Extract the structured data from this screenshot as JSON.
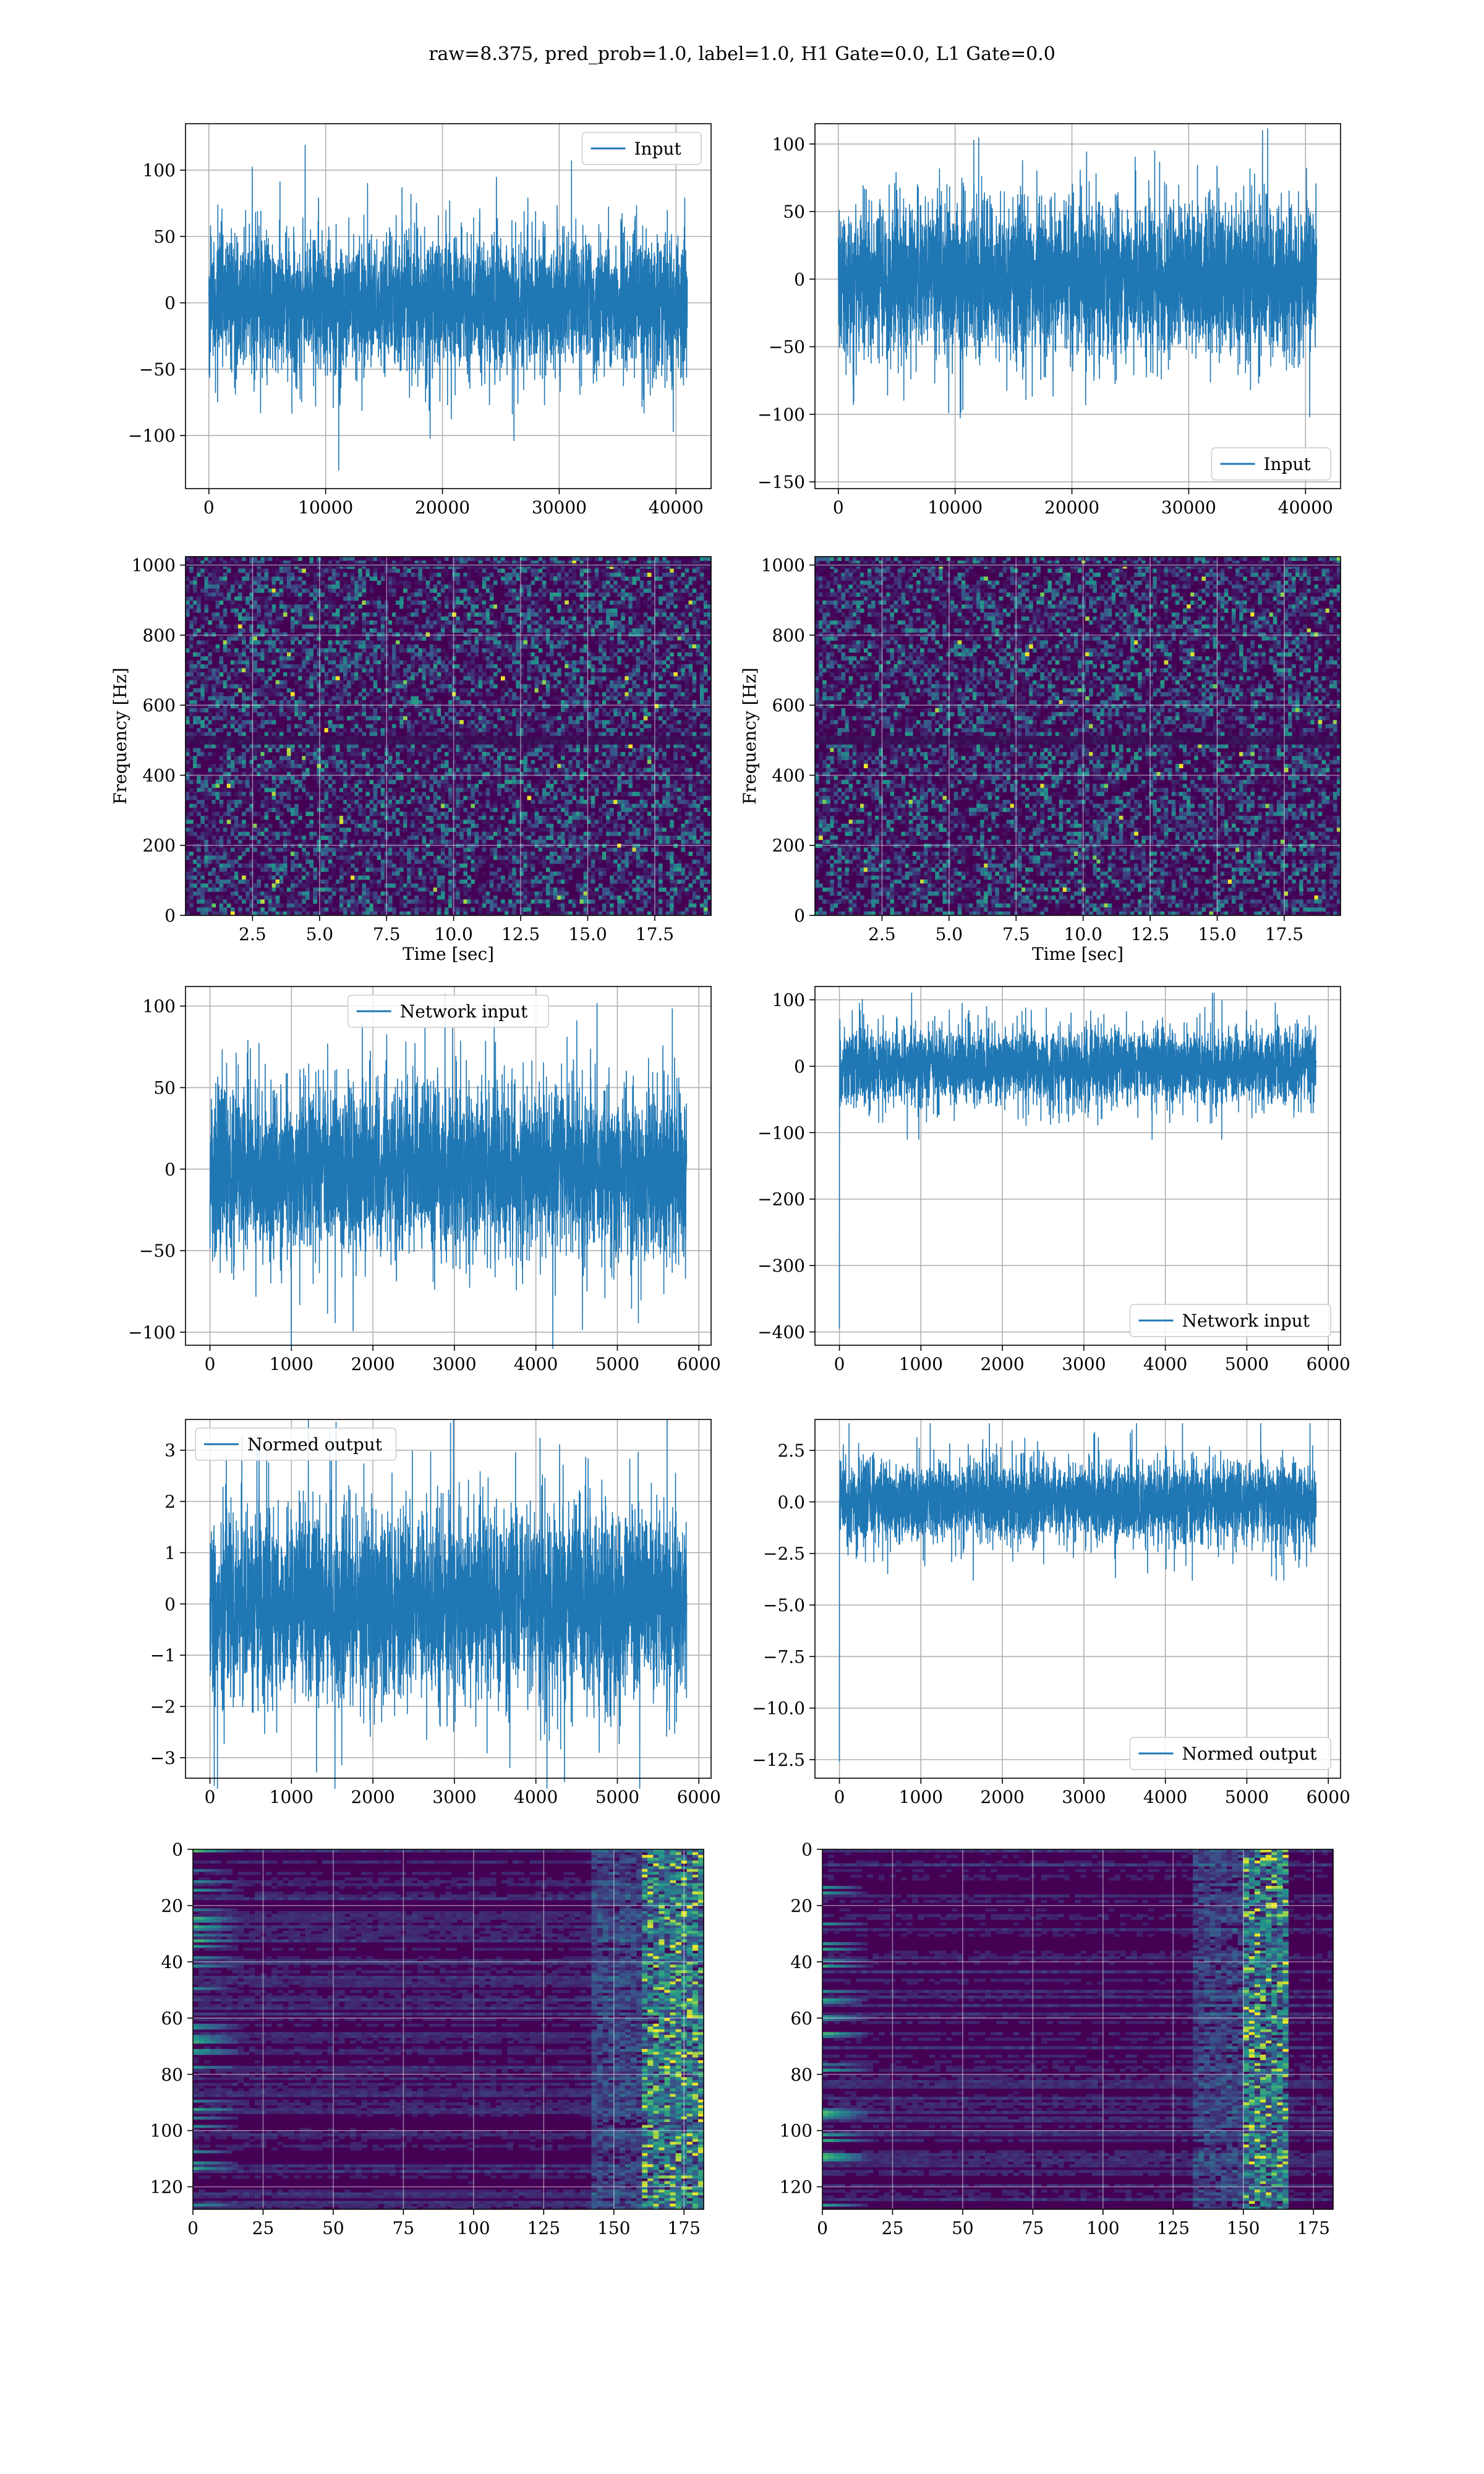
{
  "figure": {
    "title": "raw=8.375, pred_prob=1.0, label=1.0, H1 Gate=0.0, L1 Gate=0.0",
    "line_color": "#1f77b4"
  },
  "chart_data": [
    {
      "type": "line",
      "name": "h1-input",
      "series": [
        {
          "name": "Input",
          "n_points": 40960,
          "amplitude_rms": 25,
          "amplitude_peak": 126
        }
      ],
      "xlim": [
        -2000,
        43000
      ],
      "ylim": [
        -140,
        135
      ],
      "xticks": [
        0,
        10000,
        20000,
        30000,
        40000
      ],
      "yticks": [
        -100,
        -50,
        0,
        50,
        100
      ],
      "legend": "top-right",
      "grid": true
    },
    {
      "type": "line",
      "name": "l1-input",
      "series": [
        {
          "name": "Input",
          "n_points": 40960,
          "amplitude_rms": 28,
          "amplitude_peak": 142
        }
      ],
      "xlim": [
        -2000,
        43000
      ],
      "ylim": [
        -155,
        115
      ],
      "xticks": [
        0,
        10000,
        20000,
        30000,
        40000
      ],
      "yticks": [
        -150,
        -100,
        -50,
        0,
        50,
        100
      ],
      "legend": "bottom-right",
      "grid": true
    },
    {
      "type": "heatmap",
      "name": "h1-spectrogram",
      "xlim": [
        0.0,
        19.6
      ],
      "ylim": [
        0,
        1024
      ],
      "xticks": [
        2.5,
        5.0,
        7.5,
        10.0,
        12.5,
        15.0,
        17.5
      ],
      "yticks": [
        0,
        200,
        400,
        600,
        800,
        1000
      ],
      "xlabel": "Time [sec]",
      "ylabel": "Frequency [Hz]",
      "grid": true
    },
    {
      "type": "heatmap",
      "name": "l1-spectrogram",
      "xlim": [
        0.0,
        19.6
      ],
      "ylim": [
        0,
        1024
      ],
      "xticks": [
        2.5,
        5.0,
        7.5,
        10.0,
        12.5,
        15.0,
        17.5
      ],
      "yticks": [
        0,
        200,
        400,
        600,
        800,
        1000
      ],
      "xlabel": "Time [sec]",
      "ylabel": "Frequency [Hz]",
      "grid": true
    },
    {
      "type": "line",
      "name": "h1-network-input",
      "series": [
        {
          "name": "Network input",
          "n_points": 5850,
          "amplitude_rms": 25,
          "amplitude_peak": 110
        }
      ],
      "xlim": [
        -300,
        6150
      ],
      "ylim": [
        -108,
        112
      ],
      "xticks": [
        0,
        1000,
        2000,
        3000,
        4000,
        5000,
        6000
      ],
      "yticks": [
        -100,
        -50,
        0,
        50,
        100
      ],
      "legend": "top-center",
      "grid": true
    },
    {
      "type": "line",
      "name": "l1-network-input",
      "series": [
        {
          "name": "Network input",
          "n_points": 5850,
          "amplitude_rms": 28,
          "amplitude_peak": 110,
          "initial_spike": -395
        }
      ],
      "xlim": [
        -300,
        6150
      ],
      "ylim": [
        -420,
        120
      ],
      "xticks": [
        0,
        1000,
        2000,
        3000,
        4000,
        5000,
        6000
      ],
      "yticks": [
        -400,
        -300,
        -200,
        -100,
        0,
        100
      ],
      "legend": "bottom-right",
      "grid": true
    },
    {
      "type": "line",
      "name": "h1-normed-output",
      "series": [
        {
          "name": "Normed output",
          "n_points": 5850,
          "amplitude_rms": 0.9,
          "amplitude_peak": 3.6
        }
      ],
      "xlim": [
        -300,
        6150
      ],
      "ylim": [
        -3.4,
        3.6
      ],
      "xticks": [
        0,
        1000,
        2000,
        3000,
        4000,
        5000,
        6000
      ],
      "yticks": [
        -3,
        -2,
        -1,
        0,
        1,
        2,
        3
      ],
      "legend": "top-left",
      "grid": true
    },
    {
      "type": "line",
      "name": "l1-normed-output",
      "series": [
        {
          "name": "Normed output",
          "n_points": 5850,
          "amplitude_rms": 0.95,
          "amplitude_peak": 3.8,
          "initial_spike": -12.6
        }
      ],
      "xlim": [
        -300,
        6150
      ],
      "ylim": [
        -13.4,
        4.0
      ],
      "xticks": [
        0,
        1000,
        2000,
        3000,
        4000,
        5000,
        6000
      ],
      "yticks": [
        -12.5,
        -10.0,
        -7.5,
        -5.0,
        -2.5,
        0.0,
        2.5
      ],
      "legend": "bottom-right",
      "grid": true
    },
    {
      "type": "heatmap",
      "name": "h1-features",
      "rows": 128,
      "cols": 182,
      "xlim": [
        0,
        182
      ],
      "ylim": [
        128,
        0
      ],
      "xticks": [
        0,
        25,
        50,
        75,
        100,
        125,
        150,
        175
      ],
      "yticks": [
        0,
        20,
        40,
        60,
        80,
        100,
        120
      ],
      "hot_columns": [
        160,
        182
      ],
      "grid": true
    },
    {
      "type": "heatmap",
      "name": "l1-features",
      "rows": 128,
      "cols": 182,
      "xlim": [
        0,
        182
      ],
      "ylim": [
        128,
        0
      ],
      "xticks": [
        0,
        25,
        50,
        75,
        100,
        125,
        150,
        175
      ],
      "yticks": [
        0,
        20,
        40,
        60,
        80,
        100,
        120
      ],
      "hot_columns": [
        150,
        165
      ],
      "grid": true
    }
  ]
}
